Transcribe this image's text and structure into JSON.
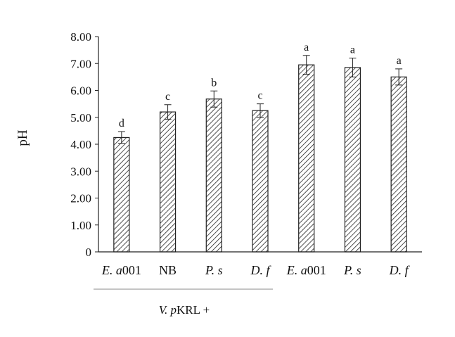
{
  "chart_data": {
    "type": "bar",
    "title": "",
    "xlabel": "",
    "ylabel": "pH",
    "ylim": [
      0,
      8
    ],
    "yticks": [
      "0",
      "1.00",
      "2.00",
      "3.00",
      "4.00",
      "5.00",
      "6.00",
      "7.00",
      "8.00"
    ],
    "grid": false,
    "legend": "none",
    "bar_fill": "diagonal hatch",
    "categories": [
      {
        "prefix": "E. a",
        "suffix": "001"
      },
      {
        "prefix": "",
        "suffix": "NB"
      },
      {
        "prefix": "P. s",
        "suffix": ""
      },
      {
        "prefix": "D. f",
        "suffix": ""
      },
      {
        "prefix": "E. a",
        "suffix": "001"
      },
      {
        "prefix": "P. s",
        "suffix": ""
      },
      {
        "prefix": "D. f",
        "suffix": ""
      }
    ],
    "values": [
      4.25,
      5.2,
      5.68,
      5.25,
      6.95,
      6.85,
      6.5
    ],
    "errors": [
      0.22,
      0.27,
      0.3,
      0.25,
      0.35,
      0.35,
      0.3
    ],
    "significance": [
      "d",
      "c",
      "b",
      "c",
      "a",
      "a",
      "a"
    ],
    "group_label": {
      "prefix": "V. p",
      "suffix": "KRL +"
    }
  }
}
